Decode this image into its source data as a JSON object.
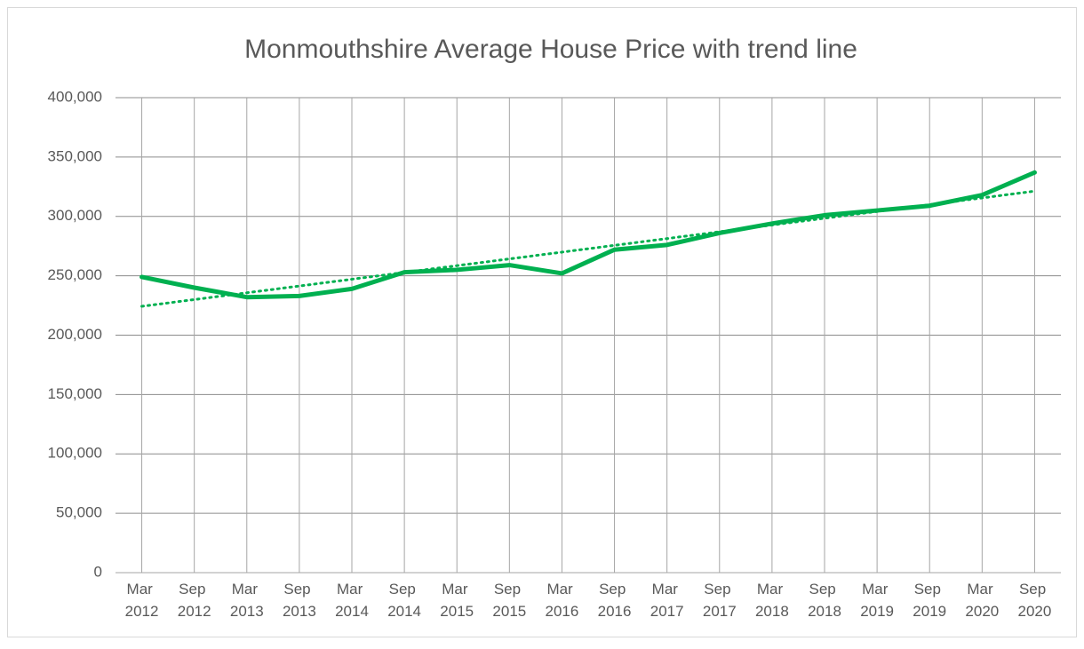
{
  "chart_data": {
    "type": "line",
    "title": "Monmouthshire Average House Price with trend line",
    "categories": [
      "Mar 2012",
      "Sep 2012",
      "Mar 2013",
      "Sep 2013",
      "Mar 2014",
      "Sep 2014",
      "Mar 2015",
      "Sep 2015",
      "Mar 2016",
      "Sep 2016",
      "Mar 2017",
      "Sep 2017",
      "Mar 2018",
      "Sep 2018",
      "Mar 2019",
      "Sep 2019",
      "Mar 2020",
      "Sep 2020"
    ],
    "series": [
      {
        "color": "#00b050",
        "values": [
          249000,
          240000,
          232000,
          233000,
          239000,
          253000,
          255000,
          259000,
          252000,
          272000,
          276000,
          286000,
          294000,
          301000,
          305000,
          309000,
          318000,
          337000
        ]
      }
    ],
    "trendline": "linear",
    "ylim": [
      0,
      400000
    ],
    "yticks": [
      {
        "value": 0,
        "label": "0"
      },
      {
        "value": 50000,
        "label": "50,000"
      },
      {
        "value": 100000,
        "label": "100,000"
      },
      {
        "value": 150000,
        "label": "150,000"
      },
      {
        "value": 200000,
        "label": "200,000"
      },
      {
        "value": 250000,
        "label": "250,000"
      },
      {
        "value": 300000,
        "label": "300,000"
      },
      {
        "value": 350000,
        "label": "350,000"
      },
      {
        "value": 400000,
        "label": "400,000"
      }
    ],
    "grid": true
  }
}
